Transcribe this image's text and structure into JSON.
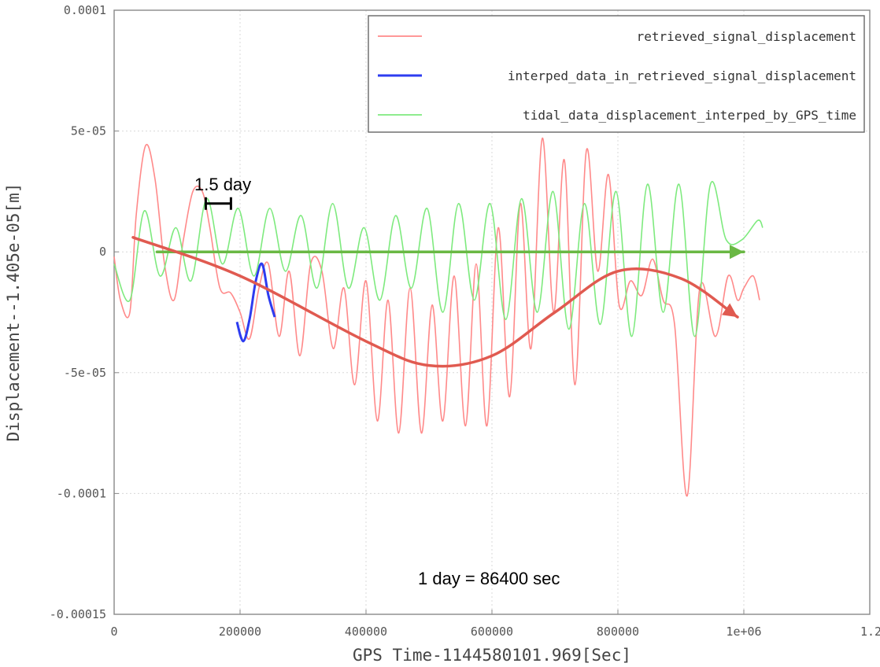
{
  "chart_data": {
    "type": "line",
    "xlabel": "GPS Time-1144580101.969[Sec]",
    "ylabel": "Displacement--1.405e-05[m]",
    "xlim": [
      0,
      1200000
    ],
    "ylim": [
      -0.00015,
      0.0001
    ],
    "x_ticks": [
      {
        "value": 0,
        "label": "0"
      },
      {
        "value": 200000,
        "label": "200000"
      },
      {
        "value": 400000,
        "label": "400000"
      },
      {
        "value": 600000,
        "label": "600000"
      },
      {
        "value": 800000,
        "label": "800000"
      },
      {
        "value": 1000000,
        "label": "1e+06"
      },
      {
        "value": 1200000,
        "label": "1.2e+06"
      }
    ],
    "y_ticks": [
      {
        "value": 0.0001,
        "label": "0.0001"
      },
      {
        "value": 5e-05,
        "label": "5e-05"
      },
      {
        "value": 0,
        "label": "0"
      },
      {
        "value": -5e-05,
        "label": "-5e-05"
      },
      {
        "value": -0.0001,
        "label": "-0.0001"
      },
      {
        "value": -0.00015,
        "label": "-0.00015"
      }
    ],
    "grid": true,
    "legend_position": "top-right",
    "series": [
      {
        "name": "retrieved_signal_displacement",
        "color": "#ff8a8a",
        "x": [
          0,
          10000,
          25000,
          35000,
          50000,
          65000,
          80000,
          95000,
          110000,
          125000,
          140000,
          152000,
          168000,
          185000,
          200000,
          215000,
          230000,
          245000,
          262000,
          278000,
          295000,
          312000,
          330000,
          348000,
          365000,
          382000,
          400000,
          418000,
          435000,
          452000,
          470000,
          488000,
          505000,
          522000,
          540000,
          558000,
          575000,
          592000,
          610000,
          628000,
          645000,
          662000,
          680000,
          698000,
          715000,
          732000,
          750000,
          768000,
          785000,
          802000,
          820000,
          838000,
          855000,
          872000,
          890000,
          910000,
          930000,
          955000,
          975000,
          990000,
          1000000,
          1015000,
          1025000
        ],
        "values": [
          -2e-06,
          -2e-05,
          -2.5e-05,
          1.5e-05,
          4.4e-05,
          3e-05,
          -5e-06,
          -2e-05,
          5e-06,
          2.5e-05,
          2.5e-05,
          1e-05,
          -1.5e-05,
          -1.7e-05,
          -2.5e-05,
          -3.6e-05,
          -1.5e-05,
          -5e-06,
          -3.5e-05,
          -8e-06,
          -4.3e-05,
          -5e-06,
          -8e-06,
          -4e-05,
          -1.5e-05,
          -5.5e-05,
          -1.2e-05,
          -7e-05,
          -2e-05,
          -7.5e-05,
          -1.5e-05,
          -7.5e-05,
          -2.2e-05,
          -7e-05,
          -1e-05,
          -7.2e-05,
          -5e-06,
          -7.2e-05,
          1e-05,
          -6e-05,
          2e-05,
          -4e-05,
          4.7e-05,
          -2.5e-05,
          3.8e-05,
          -5.5e-05,
          4.2e-05,
          -8e-06,
          3.2e-05,
          -2.2e-05,
          -1.2e-05,
          -1.8e-05,
          -3e-06,
          -2e-05,
          -3e-05,
          -0.000101,
          -1.5e-05,
          -3.5e-05,
          -1e-05,
          -2e-05,
          -1.5e-05,
          -1e-05,
          -2e-05
        ]
      },
      {
        "name": "interped_data_in_retrieved_signal_displacement",
        "color": "#2d3cf0",
        "x": [
          195000,
          205000,
          215000,
          225000,
          235000,
          245000,
          255000
        ],
        "values": [
          -2.9e-05,
          -3.7e-05,
          -2.8e-05,
          -1.2e-05,
          -5e-06,
          -1.8e-05,
          -2.7e-05
        ]
      },
      {
        "name": "tidal_data_displacement_interped_by_GPS_time",
        "color": "#7eea7e",
        "x": [
          0,
          25000,
          48000,
          73000,
          98000,
          122000,
          147000,
          172000,
          197000,
          222000,
          247000,
          272000,
          297000,
          322000,
          347000,
          372000,
          397000,
          422000,
          447000,
          472000,
          497000,
          522000,
          547000,
          572000,
          597000,
          622000,
          647000,
          672000,
          697000,
          722000,
          747000,
          772000,
          797000,
          822000,
          847000,
          872000,
          897000,
          922000,
          947000,
          972000,
          997000,
          1022000,
          1030000
        ],
        "values": [
          -5e-06,
          -2e-05,
          1.7e-05,
          -1e-05,
          1e-05,
          -1.2e-05,
          2.2e-05,
          -5e-06,
          1.8e-05,
          -1e-05,
          1.8e-05,
          -8e-06,
          1.5e-05,
          -1.5e-05,
          2e-05,
          -1.5e-05,
          1e-05,
          -2e-05,
          1.5e-05,
          -1.5e-05,
          1.8e-05,
          -2.5e-05,
          2e-05,
          -2e-05,
          2e-05,
          -2.8e-05,
          2.2e-05,
          -2.5e-05,
          2.5e-05,
          -3.2e-05,
          2e-05,
          -3e-05,
          2.5e-05,
          -3.5e-05,
          2.8e-05,
          -2.5e-05,
          2.8e-05,
          -3.5e-05,
          2.8e-05,
          5e-06,
          5e-06,
          1.3e-05,
          1e-05
        ]
      }
    ],
    "annotations": [
      {
        "text": "1.5 day",
        "x": 155000,
        "y": 2.8e-05,
        "bracket_from": 148000,
        "bracket_to": 268000,
        "bracket_y": 2e-05,
        "color": "#000000"
      },
      {
        "text": "1 day = 86400 sec",
        "x": 510000,
        "y": -0.000135,
        "color": "#000000"
      },
      {
        "type": "arrow",
        "color": "#6ab844",
        "x": [
          68000,
          1000000
        ],
        "values": [
          0,
          0
        ]
      },
      {
        "type": "arrow",
        "color": "#e05a50",
        "x": [
          30000,
          200000,
          400000,
          500000,
          600000,
          700000,
          800000,
          900000,
          990000
        ],
        "values": [
          6e-06,
          -1e-05,
          -3.7e-05,
          -4.7e-05,
          -4.3e-05,
          -2.5e-05,
          -8e-06,
          -1.1e-05,
          -2.7e-05
        ]
      }
    ]
  }
}
